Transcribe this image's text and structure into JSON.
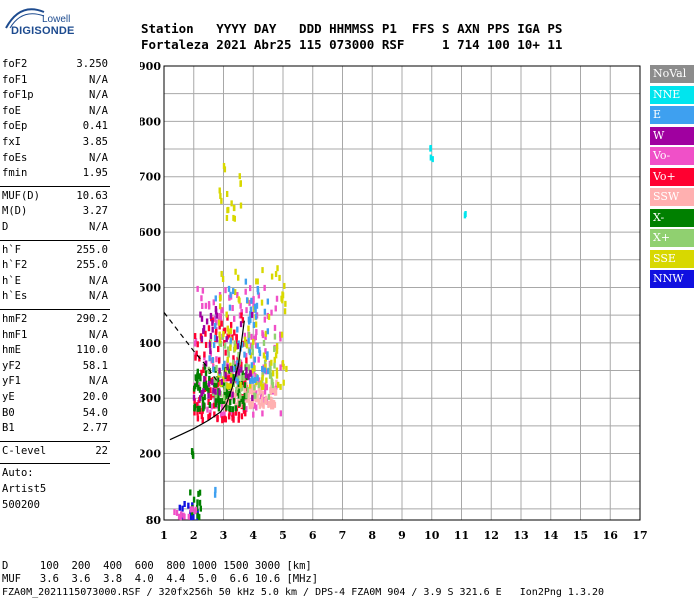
{
  "logo": {
    "top": "Lowell",
    "main": "DIGISONDE"
  },
  "header": {
    "line1": "Station   YYYY DAY   DDD HHMMSS P1  FFS S AXN PPS IGA PS",
    "line2": "Fortaleza 2021 Abr25 115 073000 RSF     1 714 100 10+ 11"
  },
  "params_group1": [
    {
      "label": "foF2",
      "value": "3.250"
    },
    {
      "label": "foF1",
      "value": "N/A"
    },
    {
      "label": "foF1p",
      "value": "N/A"
    },
    {
      "label": "foE",
      "value": "N/A"
    },
    {
      "label": "foEp",
      "value": "0.41"
    },
    {
      "label": "fxI",
      "value": "3.85"
    },
    {
      "label": "foEs",
      "value": "N/A"
    },
    {
      "label": "fmin",
      "value": "1.95"
    }
  ],
  "params_group2": [
    {
      "label": "MUF(D)",
      "value": "10.63"
    },
    {
      "label": "M(D)",
      "value": "3.27"
    },
    {
      "label": "D",
      "value": "N/A"
    }
  ],
  "params_group3": [
    {
      "label": "h`F",
      "value": "255.0"
    },
    {
      "label": "h`F2",
      "value": "255.0"
    },
    {
      "label": "h`E",
      "value": "N/A"
    },
    {
      "label": "h`Es",
      "value": "N/A"
    }
  ],
  "params_group4": [
    {
      "label": "hmF2",
      "value": "290.2"
    },
    {
      "label": "hmF1",
      "value": "N/A"
    },
    {
      "label": "hmE",
      "value": "110.0"
    },
    {
      "label": "yF2",
      "value": "58.1"
    },
    {
      "label": "yF1",
      "value": "N/A"
    },
    {
      "label": "yE",
      "value": "20.0"
    },
    {
      "label": "B0",
      "value": "54.0"
    },
    {
      "label": "B1",
      "value": "2.77"
    }
  ],
  "clevel": {
    "label": "C-level",
    "value": "22"
  },
  "auto": {
    "line1": "Auto:",
    "line2": "Artist5",
    "line3": "500200"
  },
  "legend": [
    {
      "label": "NoVal",
      "color": "#8c8c8c"
    },
    {
      "label": "NNE",
      "color": "#00e5ee"
    },
    {
      "label": "E",
      "color": "#3ea0f0"
    },
    {
      "label": "W",
      "color": "#a000a0"
    },
    {
      "label": "Vo-",
      "color": "#f050c8"
    },
    {
      "label": "Vo+",
      "color": "#ff0030"
    },
    {
      "label": "SSW",
      "color": "#ffb0b0"
    },
    {
      "label": "X-",
      "color": "#008000"
    },
    {
      "label": "X+",
      "color": "#90d070"
    },
    {
      "label": "SSE",
      "color": "#d8d800"
    },
    {
      "label": "NNW",
      "color": "#1010e0"
    }
  ],
  "footer": {
    "line1": "D     100  200  400  600  800 1000 1500 3000 [km]",
    "line2": "MUF   3.6  3.6  3.8  4.0  4.4  5.0  6.6 10.6 [MHz]",
    "line3": "FZA0M_2021115073000.RSF / 320fx256h 50 kHz 5.0 km / DPS-4 FZA0M 904 / 3.9 S 321.6 E   Ion2Png 1.3.20"
  },
  "chart_data": {
    "type": "scatter",
    "x_ticks": [
      "1",
      "2",
      "3",
      "4",
      "5",
      "6",
      "7",
      "8",
      "9",
      "10",
      "11",
      "12",
      "13",
      "14",
      "15",
      "16",
      "17"
    ],
    "y_ticks": [
      "80",
      "200",
      "300",
      "400",
      "500",
      "600",
      "700",
      "800",
      "900"
    ],
    "xlim": [
      1,
      17
    ],
    "ylim": [
      80,
      900
    ],
    "grid": true,
    "legend_placement": "right",
    "clusters": [
      {
        "name": "Vo-",
        "color": "#f050c8",
        "x_range": [
          2.0,
          5.0
        ],
        "y_range": [
          270,
          500
        ],
        "count": 160
      },
      {
        "name": "Vo+",
        "color": "#ff0030",
        "x_range": [
          2.0,
          3.8
        ],
        "y_range": [
          260,
          450
        ],
        "count": 120
      },
      {
        "name": "SSW",
        "color": "#ffb0b0",
        "x_range": [
          3.0,
          4.8
        ],
        "y_range": [
          285,
          330
        ],
        "count": 110
      },
      {
        "name": "X-",
        "color": "#008000",
        "x_range": [
          2.0,
          3.8
        ],
        "y_range": [
          280,
          360
        ],
        "count": 100
      },
      {
        "name": "X+",
        "color": "#90d070",
        "x_range": [
          2.5,
          4.8
        ],
        "y_range": [
          300,
          420
        ],
        "count": 70
      },
      {
        "name": "SSE",
        "color": "#d8d800",
        "x_range": [
          2.8,
          5.2
        ],
        "y_range": [
          320,
          540
        ],
        "count": 90
      },
      {
        "name": "SSE",
        "color": "#d8d800",
        "x_range": [
          2.8,
          3.6
        ],
        "y_range": [
          620,
          720
        ],
        "count": 18
      },
      {
        "name": "E",
        "color": "#3ea0f0",
        "x_range": [
          2.5,
          4.5
        ],
        "y_range": [
          330,
          520
        ],
        "count": 60
      },
      {
        "name": "W",
        "color": "#a000a0",
        "x_range": [
          2.0,
          4.0
        ],
        "y_range": [
          300,
          480
        ],
        "count": 50
      },
      {
        "name": "NNW",
        "color": "#1010e0",
        "x_range": [
          1.5,
          2.2
        ],
        "y_range": [
          85,
          110
        ],
        "count": 14
      },
      {
        "name": "X-",
        "color": "#008000",
        "x_range": [
          1.8,
          2.3
        ],
        "y_range": [
          85,
          130
        ],
        "count": 12
      },
      {
        "name": "Vo-",
        "color": "#f050c8",
        "x_range": [
          1.3,
          2.1
        ],
        "y_range": [
          85,
          100
        ],
        "count": 12
      },
      {
        "name": "NNE",
        "color": "#00e5ee",
        "x_range": [
          9.95,
          10.05
        ],
        "y_range": [
          730,
          760
        ],
        "count": 4
      },
      {
        "name": "NNE",
        "color": "#00e5ee",
        "x_range": [
          11.05,
          11.15
        ],
        "y_range": [
          630,
          640
        ],
        "count": 2
      },
      {
        "name": "X-",
        "color": "#008000",
        "x_range": [
          1.9,
          2.0
        ],
        "y_range": [
          195,
          205
        ],
        "count": 4
      },
      {
        "name": "E",
        "color": "#3ea0f0",
        "x_range": [
          2.7,
          2.8
        ],
        "y_range": [
          125,
          135
        ],
        "count": 2
      }
    ],
    "curves": [
      {
        "name": "profile",
        "style": "solid",
        "points": [
          [
            1.2,
            225
          ],
          [
            1.6,
            235
          ],
          [
            2.0,
            245
          ],
          [
            2.5,
            260
          ],
          [
            2.9,
            275
          ],
          [
            3.1,
            290
          ],
          [
            3.3,
            320
          ],
          [
            3.5,
            360
          ],
          [
            3.6,
            400
          ],
          [
            3.7,
            440
          ]
        ]
      },
      {
        "name": "trace",
        "style": "dashed",
        "points": [
          [
            1.0,
            455
          ],
          [
            1.5,
            420
          ],
          [
            2.0,
            385
          ],
          [
            2.4,
            360
          ],
          [
            2.6,
            345
          ],
          [
            2.8,
            330
          ]
        ]
      }
    ]
  }
}
